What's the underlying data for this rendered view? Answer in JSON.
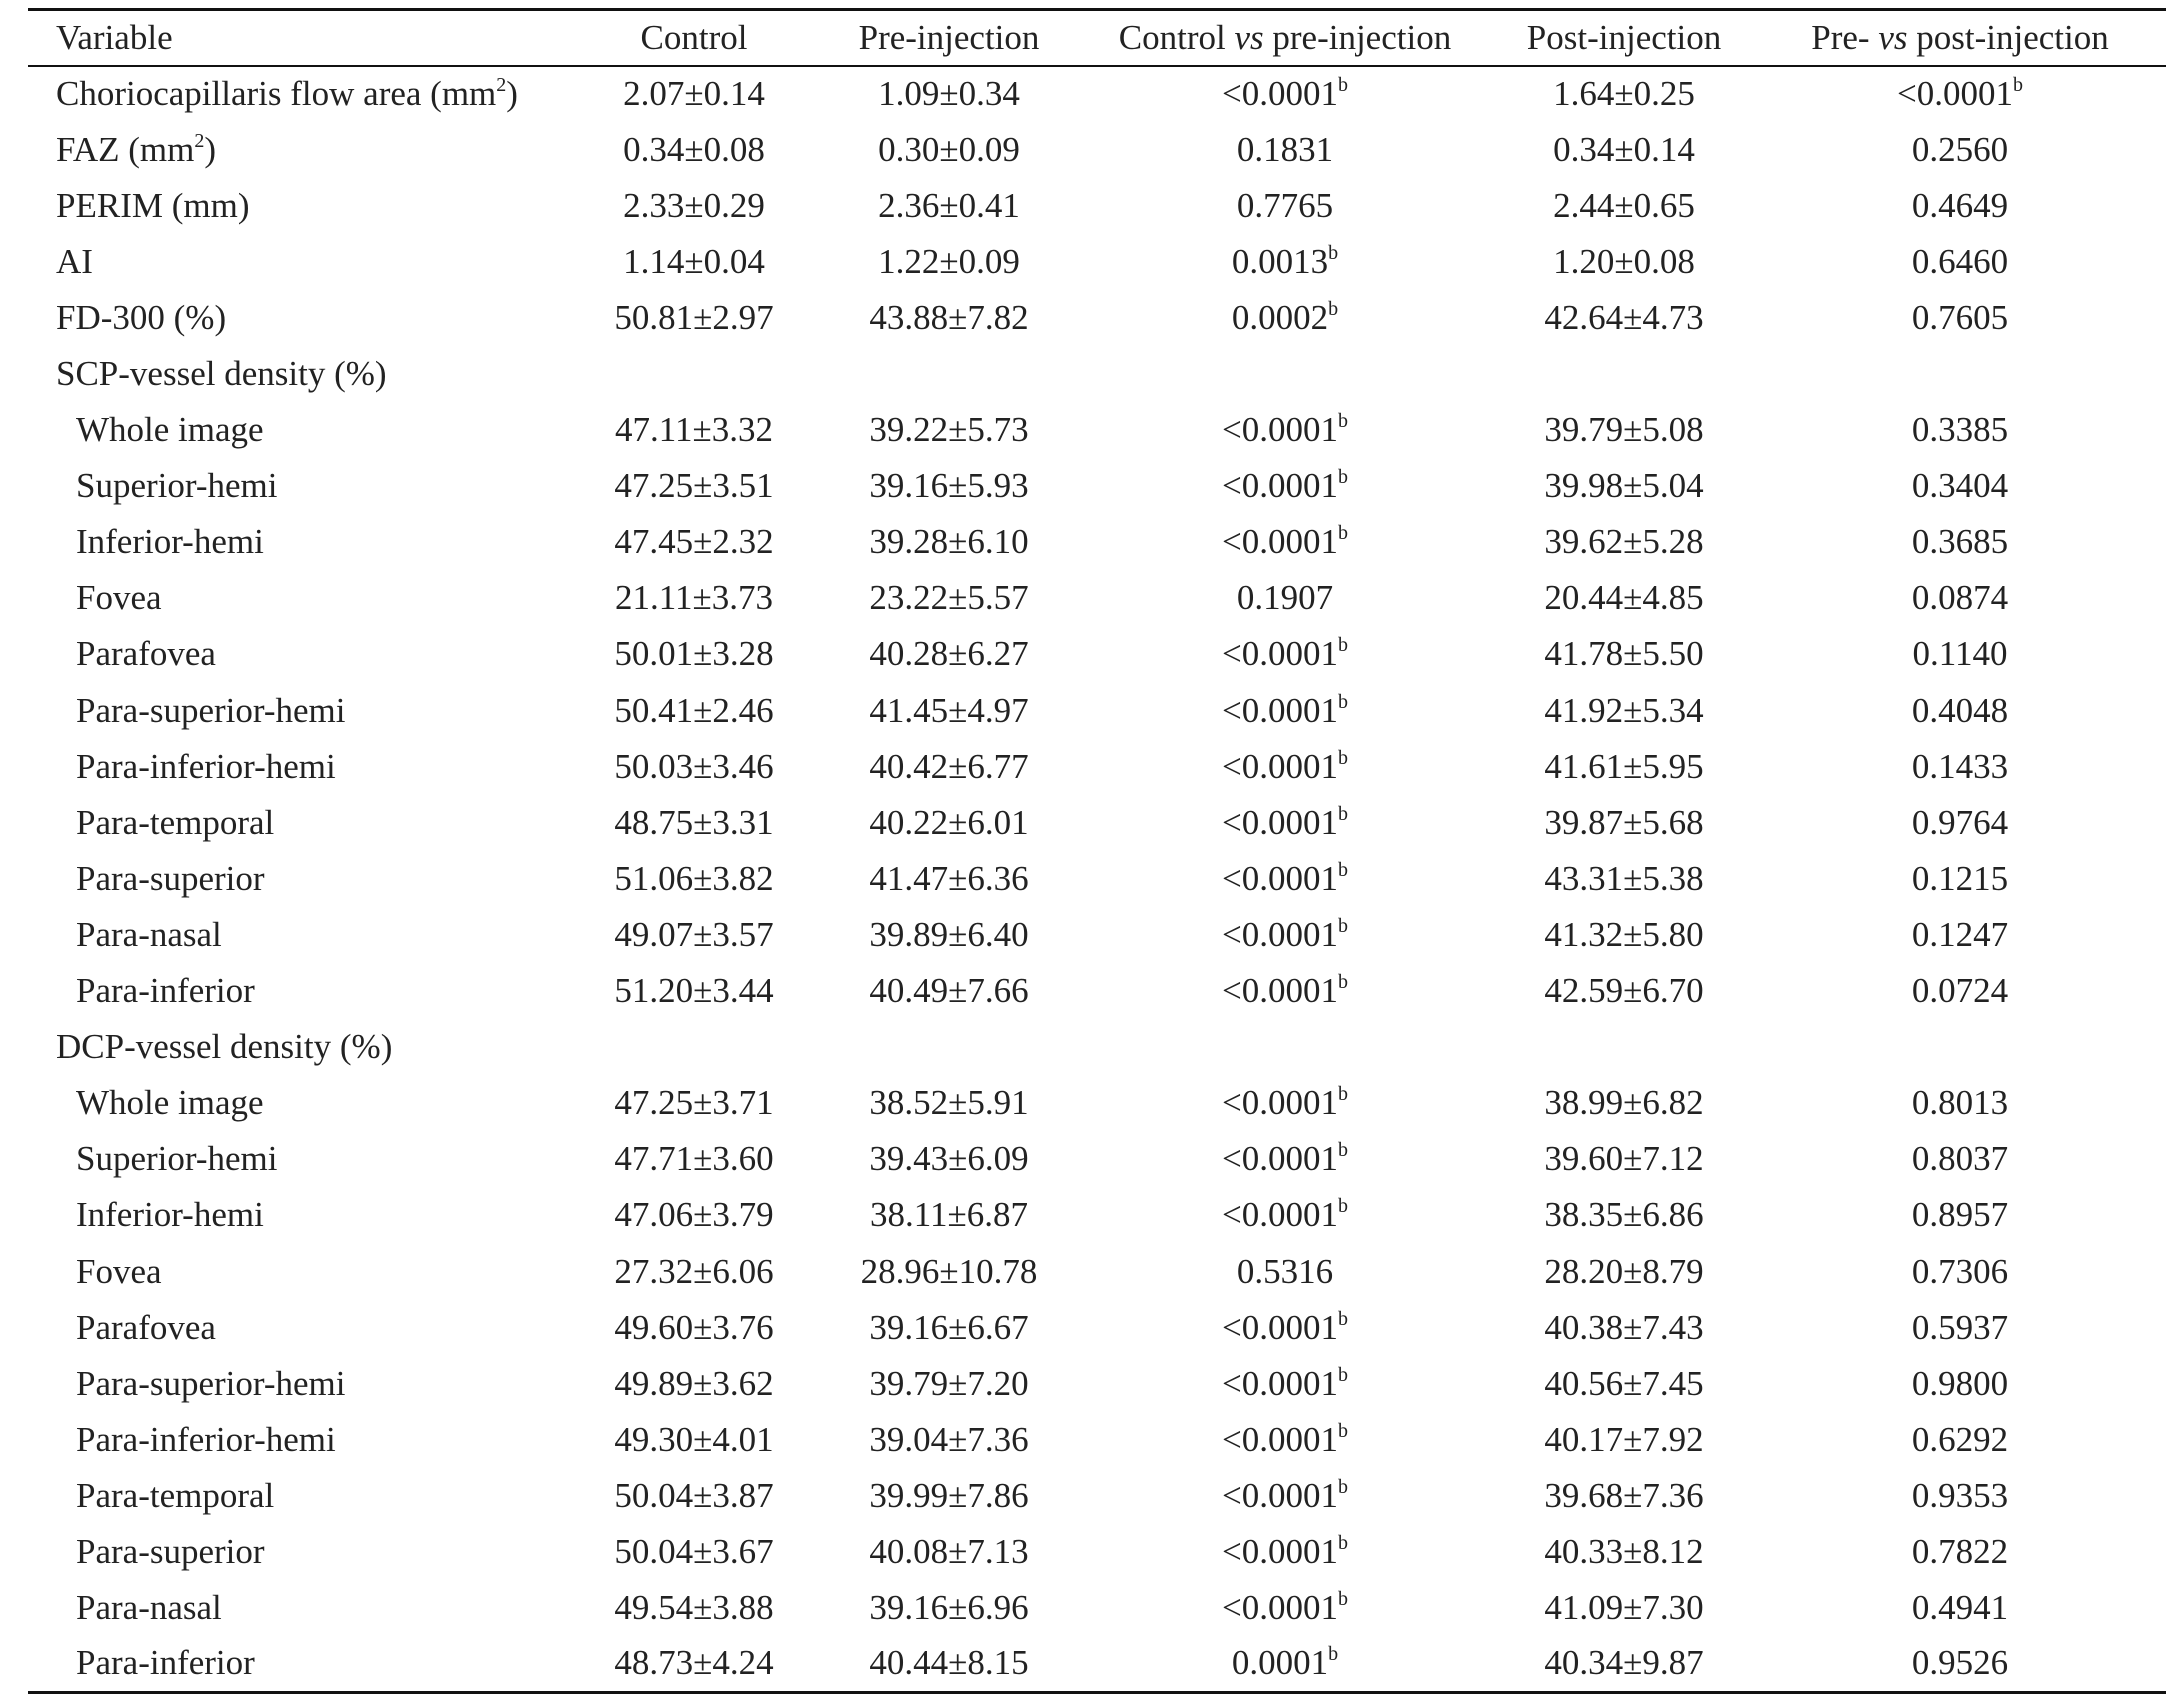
{
  "table": {
    "headers": {
      "variable": "Variable",
      "control": "Control",
      "pre": "Pre-injection",
      "ctrl_vs_pre": {
        "pre": "Control ",
        "em": "vs",
        "post": " pre-injection"
      },
      "post": "Post-injection",
      "pre_vs_post": {
        "pre": "Pre- ",
        "em": "vs",
        "post": " post-injection"
      }
    },
    "rows": [
      {
        "label": "Choriocapillaris flow area (mm",
        "sup": "2",
        "label_end": ")",
        "sub": false,
        "c1": "2.07±0.14",
        "c2": "1.09±0.34",
        "p1": "<0.0001",
        "p1b": "b",
        "c4": "1.64±0.25",
        "p2": "<0.0001",
        "p2b": "b"
      },
      {
        "label": "FAZ (mm",
        "sup": "2",
        "label_end": ")",
        "sub": false,
        "c1": "0.34±0.08",
        "c2": "0.30±0.09",
        "p1": "0.1831",
        "c4": "0.34±0.14",
        "p2": "0.2560"
      },
      {
        "label": "PERIM (mm)",
        "sub": false,
        "c1": "2.33±0.29",
        "c2": "2.36±0.41",
        "p1": "0.7765",
        "c4": "2.44±0.65",
        "p2": "0.4649"
      },
      {
        "label": "AI",
        "sub": false,
        "c1": "1.14±0.04",
        "c2": "1.22±0.09",
        "p1": "0.0013",
        "p1b": "b",
        "c4": "1.20±0.08",
        "p2": "0.6460"
      },
      {
        "label": "FD-300 (%)",
        "sub": false,
        "c1": "50.81±2.97",
        "c2": "43.88±7.82",
        "p1": "0.0002",
        "p1b": "b",
        "c4": "42.64±4.73",
        "p2": "0.7605"
      },
      {
        "label": "SCP-vessel density (%)",
        "sub": false
      },
      {
        "label": "Whole image",
        "sub": true,
        "c1": "47.11±3.32",
        "c2": "39.22±5.73",
        "p1": "<0.0001",
        "p1b": "b",
        "c4": "39.79±5.08",
        "p2": "0.3385"
      },
      {
        "label": "Superior-hemi",
        "sub": true,
        "c1": "47.25±3.51",
        "c2": "39.16±5.93",
        "p1": "<0.0001",
        "p1b": "b",
        "c4": "39.98±5.04",
        "p2": "0.3404"
      },
      {
        "label": "Inferior-hemi",
        "sub": true,
        "c1": "47.45±2.32",
        "c2": "39.28±6.10",
        "p1": "<0.0001",
        "p1b": "b",
        "c4": "39.62±5.28",
        "p2": "0.3685"
      },
      {
        "label": "Fovea",
        "sub": true,
        "c1": "21.11±3.73",
        "c2": "23.22±5.57",
        "p1": "0.1907",
        "c4": "20.44±4.85",
        "p2": "0.0874"
      },
      {
        "label": "Parafovea",
        "sub": true,
        "c1": "50.01±3.28",
        "c2": "40.28±6.27",
        "p1": "<0.0001",
        "p1b": "b",
        "c4": "41.78±5.50",
        "p2": "0.1140"
      },
      {
        "label": "Para-superior-hemi",
        "sub": true,
        "c1": "50.41±2.46",
        "c2": "41.45±4.97",
        "p1": "<0.0001",
        "p1b": "b",
        "c4": "41.92±5.34",
        "p2": "0.4048"
      },
      {
        "label": "Para-inferior-hemi",
        "sub": true,
        "c1": "50.03±3.46",
        "c2": "40.42±6.77",
        "p1": "<0.0001",
        "p1b": "b",
        "c4": "41.61±5.95",
        "p2": "0.1433"
      },
      {
        "label": "Para-temporal",
        "sub": true,
        "c1": "48.75±3.31",
        "c2": "40.22±6.01",
        "p1": "<0.0001",
        "p1b": "b",
        "c4": "39.87±5.68",
        "p2": "0.9764"
      },
      {
        "label": "Para-superior",
        "sub": true,
        "c1": "51.06±3.82",
        "c2": "41.47±6.36",
        "p1": "<0.0001",
        "p1b": "b",
        "c4": "43.31±5.38",
        "p2": "0.1215"
      },
      {
        "label": "Para-nasal",
        "sub": true,
        "c1": "49.07±3.57",
        "c2": "39.89±6.40",
        "p1": "<0.0001",
        "p1b": "b",
        "c4": "41.32±5.80",
        "p2": "0.1247"
      },
      {
        "label": "Para-inferior",
        "sub": true,
        "c1": "51.20±3.44",
        "c2": "40.49±7.66",
        "p1": "<0.0001",
        "p1b": "b",
        "c4": "42.59±6.70",
        "p2": "0.0724"
      },
      {
        "label": "DCP-vessel density (%)",
        "sub": false
      },
      {
        "label": "Whole image",
        "sub": true,
        "c1": "47.25±3.71",
        "c2": "38.52±5.91",
        "p1": "<0.0001",
        "p1b": "b",
        "c4": "38.99±6.82",
        "p2": "0.8013"
      },
      {
        "label": "Superior-hemi",
        "sub": true,
        "c1": "47.71±3.60",
        "c2": "39.43±6.09",
        "p1": "<0.0001",
        "p1b": "b",
        "c4": "39.60±7.12",
        "p2": "0.8037"
      },
      {
        "label": "Inferior-hemi",
        "sub": true,
        "c1": "47.06±3.79",
        "c2": "38.11±6.87",
        "p1": "<0.0001",
        "p1b": "b",
        "c4": "38.35±6.86",
        "p2": "0.8957"
      },
      {
        "label": "Fovea",
        "sub": true,
        "c1": "27.32±6.06",
        "c2": "28.96±10.78",
        "p1": "0.5316",
        "c4": "28.20±8.79",
        "p2": "0.7306"
      },
      {
        "label": "Parafovea",
        "sub": true,
        "c1": "49.60±3.76",
        "c2": "39.16±6.67",
        "p1": "<0.0001",
        "p1b": "b",
        "c4": "40.38±7.43",
        "p2": "0.5937"
      },
      {
        "label": "Para-superior-hemi",
        "sub": true,
        "c1": "49.89±3.62",
        "c2": "39.79±7.20",
        "p1": "<0.0001",
        "p1b": "b",
        "c4": "40.56±7.45",
        "p2": "0.9800"
      },
      {
        "label": "Para-inferior-hemi",
        "sub": true,
        "c1": "49.30±4.01",
        "c2": "39.04±7.36",
        "p1": "<0.0001",
        "p1b": "b",
        "c4": "40.17±7.92",
        "p2": "0.6292"
      },
      {
        "label": "Para-temporal",
        "sub": true,
        "c1": "50.04±3.87",
        "c2": "39.99±7.86",
        "p1": "<0.0001",
        "p1b": "b",
        "c4": "39.68±7.36",
        "p2": "0.9353"
      },
      {
        "label": "Para-superior",
        "sub": true,
        "c1": "50.04±3.67",
        "c2": "40.08±7.13",
        "p1": "<0.0001",
        "p1b": "b",
        "c4": "40.33±8.12",
        "p2": "0.7822"
      },
      {
        "label": "Para-nasal",
        "sub": true,
        "c1": "49.54±3.88",
        "c2": "39.16±6.96",
        "p1": "<0.0001",
        "p1b": "b",
        "c4": "41.09±7.30",
        "p2": "0.4941"
      },
      {
        "label": "Para-inferior",
        "sub": true,
        "c1": "48.73±4.24",
        "c2": "40.44±8.15",
        "p1": "0.0001",
        "p1b": "b",
        "c4": "40.34±9.87",
        "p2": "0.9526"
      }
    ]
  }
}
